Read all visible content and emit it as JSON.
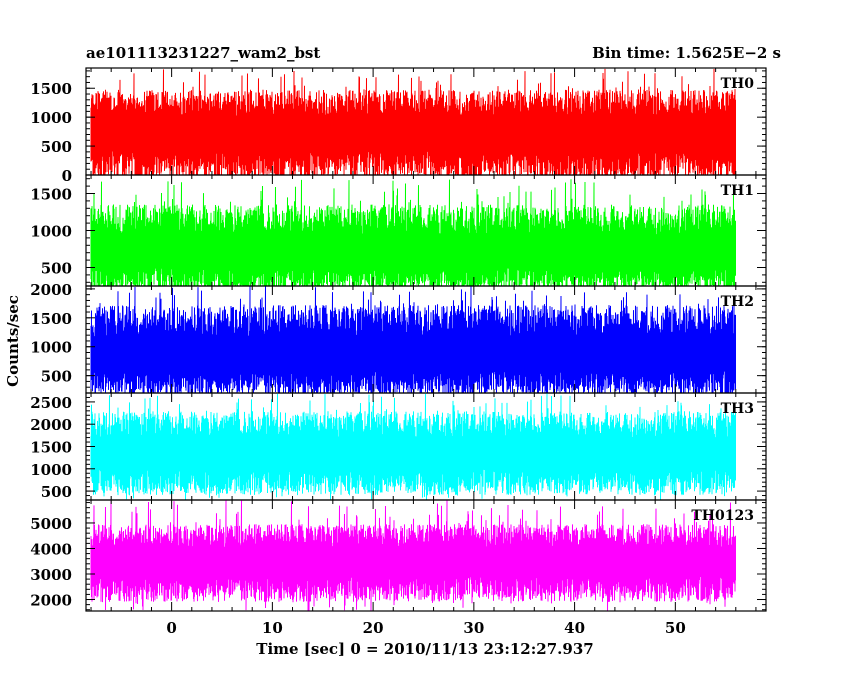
{
  "chart_data": {
    "type": "line",
    "title_left": "ae101113231227_wam2_bst",
    "title_right": "Bin time: 1.5625E−2 s",
    "xlabel": "Time [sec] 0 = 2010/11/13 23:12:27.937",
    "ylabel": "Counts/sec",
    "xlim": [
      -8.5,
      59
    ],
    "x_ticks": [
      0,
      10,
      20,
      30,
      40,
      50
    ],
    "x_minor_step": 2,
    "data_x_range": [
      -8,
      56
    ],
    "grid": false,
    "panels": [
      {
        "name": "TH0",
        "color": "#ff0000",
        "ylim": [
          0,
          1850
        ],
        "y_ticks": [
          0,
          500,
          1000,
          1500
        ],
        "typical_low": 150,
        "typical_high": 1250,
        "mean": 750,
        "spike_max": 1850,
        "spike_min": 0
      },
      {
        "name": "TH1",
        "color": "#00ff00",
        "ylim": [
          250,
          1750
        ],
        "y_ticks": [
          500,
          1000,
          1500
        ],
        "typical_low": 330,
        "typical_high": 1150,
        "mean": 700,
        "spike_max": 1700,
        "spike_min": 250
      },
      {
        "name": "TH2",
        "color": "#0000ff",
        "ylim": [
          200,
          2050
        ],
        "y_ticks": [
          500,
          1000,
          1500,
          2000
        ],
        "typical_low": 350,
        "typical_high": 1450,
        "mean": 850,
        "spike_max": 2050,
        "spike_min": 200
      },
      {
        "name": "TH3",
        "color": "#00ffff",
        "ylim": [
          300,
          2700
        ],
        "y_ticks": [
          500,
          1000,
          1500,
          2000,
          2500
        ],
        "typical_low": 700,
        "typical_high": 2000,
        "mean": 1350,
        "spike_max": 2700,
        "spike_min": 300
      },
      {
        "name": "TH0123",
        "color": "#ff00ff",
        "ylim": [
          1550,
          5900
        ],
        "y_ticks": [
          2000,
          3000,
          4000,
          5000
        ],
        "typical_low": 2400,
        "typical_high": 4500,
        "mean": 3500,
        "spike_max": 5900,
        "spike_min": 1550
      }
    ]
  }
}
